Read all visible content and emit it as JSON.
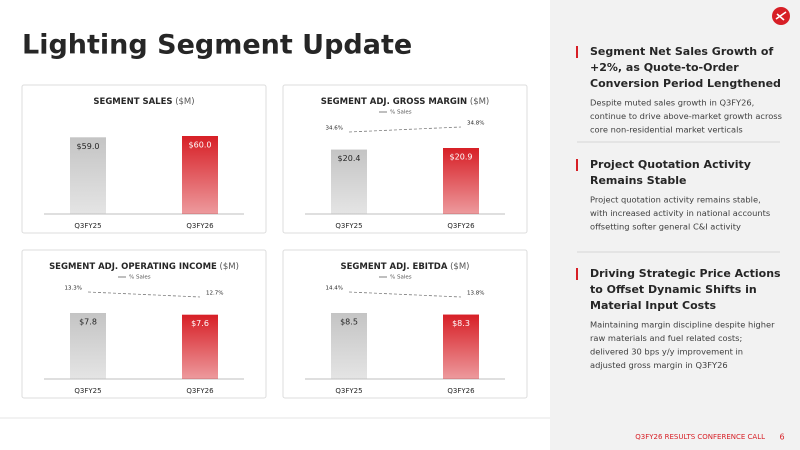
{
  "title": "Lighting Segment Update",
  "chart_data": [
    {
      "type": "bar",
      "title": "SEGMENT SALES",
      "unit": "($M)",
      "categories": [
        "Q3FY25",
        "Q3FY26"
      ],
      "values": [
        59.0,
        60.0
      ],
      "value_labels": [
        "$59.0",
        "$60.0"
      ],
      "colors": [
        "#c4c4c4",
        "#d71f26"
      ]
    },
    {
      "type": "bar",
      "title": "SEGMENT ADJ. GROSS MARGIN",
      "unit": "($M)",
      "categories": [
        "Q3FY25",
        "Q3FY26"
      ],
      "values": [
        20.4,
        20.9
      ],
      "value_labels": [
        "$20.4",
        "$20.9"
      ],
      "colors": [
        "#c4c4c4",
        "#d71f26"
      ],
      "line": {
        "name": "% Sales",
        "color": "#7f7f7f",
        "values": [
          34.6,
          34.8
        ],
        "value_labels": [
          "34.6%",
          "34.8%"
        ]
      }
    },
    {
      "type": "bar",
      "title": "SEGMENT ADJ. OPERATING INCOME",
      "unit": "($M)",
      "categories": [
        "Q3FY25",
        "Q3FY26"
      ],
      "values": [
        7.8,
        7.6
      ],
      "value_labels": [
        "$7.8",
        "$7.6"
      ],
      "colors": [
        "#c4c4c4",
        "#d71f26"
      ],
      "line": {
        "name": "% Sales",
        "color": "#7f7f7f",
        "values": [
          13.3,
          12.7
        ],
        "value_labels": [
          "13.3%",
          "12.7%"
        ]
      }
    },
    {
      "type": "bar",
      "title": "SEGMENT ADJ. EBITDA",
      "unit": "($M)",
      "categories": [
        "Q3FY25",
        "Q3FY26"
      ],
      "values": [
        8.5,
        8.3
      ],
      "value_labels": [
        "$8.5",
        "$8.3"
      ],
      "colors": [
        "#c4c4c4",
        "#d71f26"
      ],
      "line": {
        "name": "% Sales",
        "color": "#7f7f7f",
        "values": [
          14.4,
          13.8
        ],
        "value_labels": [
          "14.4%",
          "13.8%"
        ]
      }
    }
  ],
  "sidebar": [
    {
      "heading": [
        "Segment Net Sales Growth of",
        "+2%, as Quote-to-Order",
        "Conversion Period Lengthened"
      ],
      "body": [
        "Despite muted sales growth in Q3FY26,",
        "continue to drive above-market growth across",
        "core non-residential market verticals"
      ]
    },
    {
      "heading": [
        "Project Quotation Activity",
        "Remains Stable"
      ],
      "body": [
        "Project quotation activity remains stable,",
        "with increased activity in national accounts",
        "offsetting softer general C&I activity"
      ]
    },
    {
      "heading": [
        "Driving Strategic Price Actions",
        "to Offset Dynamic Shifts in",
        "Material Input Costs"
      ],
      "body": [
        "Maintaining margin discipline despite higher",
        "raw materials and fuel related costs;",
        "delivered 30 bps y/y improvement in",
        "adjusted gross margin in Q3FY26"
      ]
    }
  ],
  "footer": {
    "text": "Q3FY26 RESULTS CONFERENCE CALL",
    "page": "6"
  }
}
